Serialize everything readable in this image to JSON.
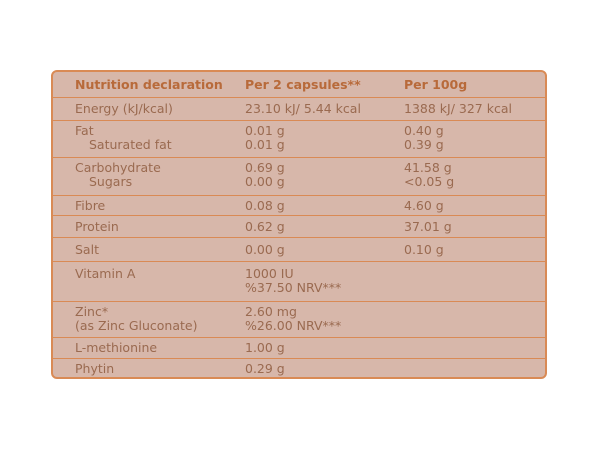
{
  "header": {
    "col1": "Nutrition declaration",
    "col2": "Per 2 capsules**",
    "col3": "Per 100g"
  },
  "rows": {
    "energy": {
      "label": "Energy (kJ/kcal)",
      "per_capsules": "23.10 kJ/ 5.44 kcal",
      "per_100g": "1388 kJ/ 327 kcal"
    },
    "fat": {
      "label": "Fat",
      "sub_label": "Saturated fat",
      "per_capsules": "0.01 g",
      "sub_per_capsules": "0.01 g",
      "per_100g": "0.40 g",
      "sub_per_100g": "0.39 g"
    },
    "carbohydrate": {
      "label": "Carbohydrate",
      "sub_label": "Sugars",
      "per_capsules": "0.69 g",
      "sub_per_capsules": "0.00 g",
      "per_100g": "41.58 g",
      "sub_per_100g": "<0.05 g"
    },
    "fibre": {
      "label": "Fibre",
      "per_capsules": "0.08 g",
      "per_100g": "4.60 g"
    },
    "protein": {
      "label": "Protein",
      "per_capsules": "0.62 g",
      "per_100g": "37.01 g"
    },
    "salt": {
      "label": "Salt",
      "per_capsules": "0.00 g",
      "per_100g": "0.10 g"
    },
    "vitamin_a": {
      "label": "Vitamin A",
      "per_capsules": "1000 IU",
      "per_capsules_2": "%37.50 NRV***"
    },
    "zinc": {
      "label": "Zinc*",
      "label_2": "(as Zinc Gluconate)",
      "per_capsules": "2.60 mg",
      "per_capsules_2": "%26.00 NRV***"
    },
    "methionine": {
      "label": "L-methionine",
      "per_capsules": "1.00 g"
    },
    "phytin": {
      "label": "Phytin",
      "per_capsules": "0.29 g"
    }
  },
  "colors": {
    "background": "#d7b7aa",
    "border": "#d98a55",
    "header_text": "#b86a3a",
    "body_text": "#9a6a50"
  }
}
